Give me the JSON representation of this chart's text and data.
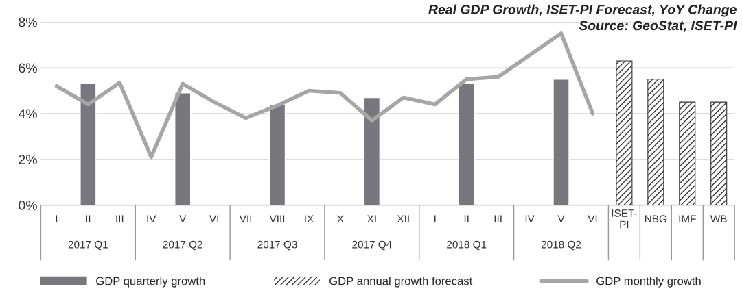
{
  "chart_data": {
    "type": "bar",
    "title": "Real GDP Growth, ISET-PI Forecast, YoY Change",
    "annotations": [
      "Source: GeoStat, ISET-PI",
      "2017 Q1",
      "2017 Q2",
      "2017 Q3",
      "2017 Q4",
      "2018 Q1",
      "2018 Q2"
    ],
    "categories": [
      "I",
      "II",
      "III",
      "IV",
      "V",
      "VI",
      "VII",
      "VIII",
      "IX",
      "X",
      "XI",
      "XII",
      "I",
      "II",
      "III",
      "IV",
      "V",
      "VI",
      "ISET-PI",
      "NBG",
      "IMF",
      "WB"
    ],
    "series": [
      {
        "name": "GDP quarterly growth",
        "color": "#77777d",
        "values": [
          null,
          5.3,
          null,
          null,
          4.9,
          null,
          null,
          4.4,
          null,
          null,
          4.7,
          null,
          null,
          5.3,
          null,
          null,
          5.5,
          null,
          null,
          null,
          null,
          null
        ]
      },
      {
        "name": "GDP annual growth forecast",
        "color": "#333333",
        "values": [
          null,
          null,
          null,
          null,
          null,
          null,
          null,
          null,
          null,
          null,
          null,
          null,
          null,
          null,
          null,
          null,
          null,
          null,
          6.3,
          5.5,
          4.5,
          4.5
        ]
      },
      {
        "name": "GDP monthly growth",
        "type": "line",
        "color": "#a6a6a6",
        "values": [
          5.2,
          4.4,
          5.35,
          2.1,
          5.3,
          4.5,
          3.8,
          4.35,
          5.0,
          4.9,
          3.7,
          4.7,
          4.4,
          5.5,
          5.6,
          6.55,
          7.5,
          4.0,
          null,
          null,
          null,
          null
        ]
      }
    ],
    "ylim": [
      0,
      8
    ],
    "yticks": [
      {
        "value": 0,
        "label": "0%"
      },
      {
        "value": 2,
        "label": "2%"
      },
      {
        "value": 4,
        "label": "4%"
      },
      {
        "value": 6,
        "label": "6%"
      },
      {
        "value": 8,
        "label": "8%"
      }
    ],
    "grid": "y",
    "legend": "bottom",
    "marker": "none",
    "line_style": "solid"
  }
}
